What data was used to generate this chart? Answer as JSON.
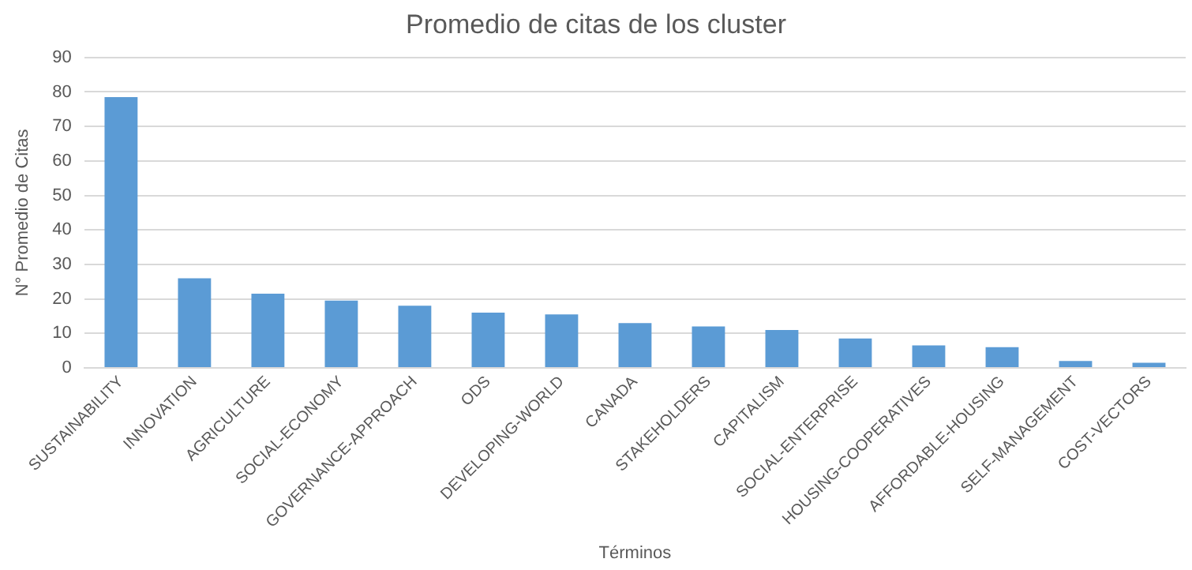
{
  "chart_data": {
    "type": "bar",
    "title": "Promedio de citas de los cluster",
    "xlabel": "Términos",
    "ylabel": "N° Promedio de Citas",
    "categories": [
      "SUSTAINABILITY",
      "INNOVATION",
      "AGRICULTURE",
      "SOCIAL-ECONOMY",
      "GOVERNANCE-APPROACH",
      "ODS",
      "DEVELOPING-WORLD",
      "CANADA",
      "STAKEHOLDERS",
      "CAPITALISM",
      "SOCIAL-ENTERPRISE",
      "HOUSING-COOPERATIVES",
      "AFFORDABLE-HOUSING",
      "SELF-MANAGEMENT",
      "COST-VECTORS"
    ],
    "values": [
      78.5,
      26,
      21.5,
      19.5,
      18,
      16,
      15.5,
      13,
      12,
      11,
      8.5,
      6.5,
      6,
      2,
      1.5
    ],
    "color": "#5b9bd5",
    "ylim": [
      0,
      90
    ],
    "yticks": [
      0,
      10,
      20,
      30,
      40,
      50,
      60,
      70,
      80,
      90
    ],
    "grid": "y"
  }
}
